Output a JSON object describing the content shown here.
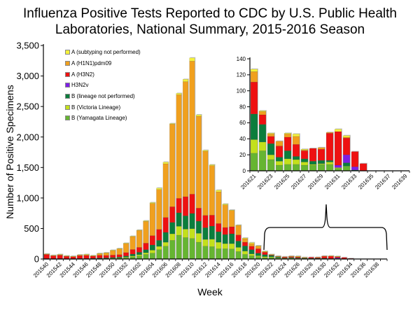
{
  "title_line1": "Influenza Positive Tests Reported to CDC by U.S. Public Health",
  "title_line2": "Laboratories, National Summary, 2015-2016 Season",
  "chart_data": [
    {
      "type": "bar",
      "stacked": true,
      "xlabel": "Week",
      "ylabel": "Number of Positive Specimens",
      "ylim": [
        0,
        3500
      ],
      "yticks": [
        0,
        500,
        1000,
        1500,
        2000,
        2500,
        3000,
        3500
      ],
      "ytick_labels": [
        "0",
        "500",
        "1,000",
        "1,500",
        "2,000",
        "2,500",
        "3,000",
        "3,500"
      ],
      "grid": false,
      "legend": "top-left",
      "categories": [
        "201540",
        "201541",
        "201542",
        "201543",
        "201544",
        "201545",
        "201546",
        "201547",
        "201548",
        "201549",
        "201550",
        "201551",
        "201552",
        "201601",
        "201602",
        "201603",
        "201604",
        "201605",
        "201606",
        "201607",
        "201608",
        "201609",
        "201610",
        "201611",
        "201612",
        "201613",
        "201614",
        "201615",
        "201616",
        "201617",
        "201618",
        "201619",
        "201620",
        "201621",
        "201622",
        "201623",
        "201624",
        "201625",
        "201626",
        "201627",
        "201628",
        "201629",
        "201630",
        "201631",
        "201632",
        "201633",
        "201634",
        "201635",
        "201636",
        "201637",
        "201638",
        "201639"
      ],
      "series": [
        {
          "name": "B (Yamagata Lineage)",
          "color": "#66b531",
          "values": [
            1,
            1,
            1,
            1,
            1,
            2,
            2,
            2,
            4,
            5,
            8,
            12,
            20,
            35,
            50,
            76,
            96,
            153,
            210,
            306,
            390,
            352,
            337,
            275,
            210,
            203,
            168,
            168,
            164,
            122,
            76,
            54,
            38,
            22,
            25,
            14,
            7,
            8,
            8,
            7,
            7,
            8,
            8,
            3,
            6,
            0,
            0,
            0,
            0,
            0,
            0,
            0
          ]
        },
        {
          "name": "B (Victoria Lineage)",
          "color": "#c3e01b",
          "values": [
            1,
            1,
            1,
            1,
            1,
            1,
            1,
            1,
            2,
            3,
            4,
            5,
            10,
            15,
            20,
            27,
            49,
            54,
            65,
            107,
            146,
            138,
            160,
            146,
            111,
            122,
            107,
            84,
            88,
            69,
            54,
            30,
            15,
            17,
            11,
            6,
            5,
            7,
            6,
            4,
            1,
            1,
            3,
            1,
            0,
            0,
            0,
            0,
            0,
            0,
            0,
            0
          ]
        },
        {
          "name": "B (lineage not performed)",
          "color": "#0b7d3c",
          "values": [
            5,
            4,
            5,
            4,
            4,
            5,
            5,
            8,
            10,
            10,
            12,
            15,
            20,
            30,
            40,
            50,
            85,
            99,
            161,
            187,
            221,
            218,
            249,
            199,
            192,
            214,
            172,
            149,
            161,
            103,
            84,
            69,
            43,
            32,
            22,
            14,
            5,
            10,
            4,
            4,
            4,
            4,
            2,
            0,
            4,
            1,
            0,
            0,
            0,
            0,
            0,
            0
          ]
        },
        {
          "name": "H3N2v",
          "color": "#7d1fe6",
          "values": [
            0,
            0,
            0,
            0,
            0,
            0,
            0,
            0,
            0,
            0,
            0,
            0,
            0,
            0,
            0,
            0,
            0,
            0,
            0,
            0,
            0,
            0,
            0,
            0,
            0,
            0,
            0,
            0,
            0,
            0,
            0,
            0,
            0,
            0,
            0,
            0,
            0,
            0,
            0,
            0,
            0,
            0,
            0,
            3,
            10,
            4,
            0,
            0,
            0,
            0,
            0,
            0
          ]
        },
        {
          "name": "A (H3N2)",
          "color": "#ee1111",
          "values": [
            72,
            50,
            55,
            40,
            35,
            48,
            50,
            35,
            45,
            40,
            40,
            40,
            55,
            75,
            80,
            107,
            153,
            179,
            245,
            257,
            237,
            313,
            317,
            214,
            202,
            180,
            134,
            115,
            115,
            100,
            61,
            57,
            72,
            40,
            12,
            9,
            14,
            17,
            15,
            10,
            16,
            14,
            34,
            42,
            21,
            19,
            9,
            0,
            0,
            0,
            0,
            0
          ]
        },
        {
          "name": "A (H1N1)pdm09",
          "color": "#f0a01e",
          "values": [
            2,
            2,
            10,
            4,
            3,
            10,
            14,
            8,
            26,
            40,
            76,
            95,
            150,
            215,
            280,
            357,
            528,
            654,
            880,
            1354,
            1699,
            1886,
            2181,
            1507,
            1052,
            811,
            520,
            371,
            267,
            157,
            58,
            42,
            42,
            13,
            4,
            3,
            6,
            4,
            10,
            1,
            0,
            2,
            1,
            0,
            1,
            0,
            0,
            0,
            0,
            0,
            0,
            0
          ]
        },
        {
          "name": "A (subtyping not performed)",
          "color": "#f5f23a",
          "values": [
            3,
            3,
            4,
            3,
            2,
            3,
            4,
            3,
            5,
            5,
            5,
            5,
            5,
            4,
            4,
            10,
            14,
            24,
            27,
            10,
            23,
            39,
            53,
            23,
            15,
            15,
            27,
            15,
            8,
            5,
            11,
            16,
            8,
            3,
            1,
            1,
            0,
            1,
            3,
            1,
            0,
            0,
            0,
            3,
            2,
            0,
            0,
            0,
            0,
            0,
            0,
            0
          ]
        }
      ]
    },
    {
      "type": "bar",
      "stacked": true,
      "ylim": [
        0,
        140
      ],
      "yticks": [
        0,
        20,
        40,
        60,
        80,
        100,
        120,
        140
      ],
      "ytick_labels": [
        "0",
        "20",
        "40",
        "60",
        "80",
        "100",
        "120",
        "140"
      ],
      "grid": false,
      "categories": [
        "201621",
        "201622",
        "201623",
        "201624",
        "201625",
        "201626",
        "201627",
        "201628",
        "201629",
        "201630",
        "201631",
        "201632",
        "201633",
        "201634",
        "201635",
        "201636",
        "201637",
        "201638",
        "201639"
      ],
      "series": [
        {
          "color": "#66b531",
          "values": [
            22,
            25,
            14,
            7,
            8,
            8,
            7,
            7,
            8,
            8,
            3,
            6,
            0,
            0,
            0,
            0,
            0,
            0,
            0
          ]
        },
        {
          "color": "#c3e01b",
          "values": [
            17,
            11,
            6,
            5,
            7,
            6,
            4,
            1,
            1,
            3,
            1,
            0,
            0,
            0,
            0,
            0,
            0,
            0,
            0
          ]
        },
        {
          "color": "#0b7d3c",
          "values": [
            32,
            22,
            14,
            5,
            10,
            4,
            4,
            4,
            4,
            2,
            0,
            4,
            1,
            0,
            0,
            0,
            0,
            0,
            0
          ]
        },
        {
          "color": "#7d1fe6",
          "values": [
            0,
            0,
            0,
            0,
            0,
            0,
            0,
            0,
            0,
            0,
            3,
            10,
            4,
            0,
            0,
            0,
            0,
            0,
            0
          ]
        },
        {
          "color": "#ee1111",
          "values": [
            40,
            12,
            9,
            14,
            17,
            15,
            10,
            16,
            14,
            34,
            42,
            21,
            19,
            9,
            0,
            0,
            0,
            0,
            0
          ]
        },
        {
          "color": "#f0a01e",
          "values": [
            13,
            4,
            3,
            6,
            4,
            10,
            1,
            0,
            2,
            1,
            0,
            1,
            0,
            0,
            0,
            0,
            0,
            0,
            0
          ]
        },
        {
          "color": "#f5f23a",
          "values": [
            3,
            1,
            1,
            0,
            1,
            3,
            1,
            0,
            0,
            0,
            3,
            2,
            0,
            0,
            0,
            0,
            0,
            0,
            0
          ]
        }
      ]
    }
  ]
}
